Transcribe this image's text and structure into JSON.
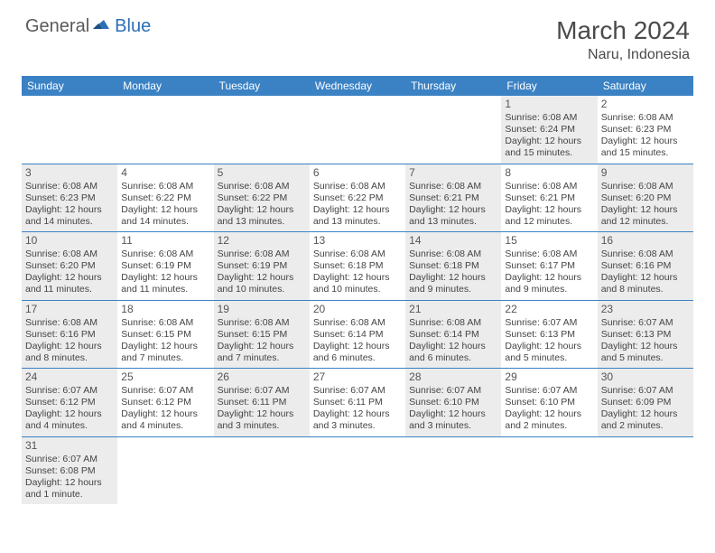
{
  "logo": {
    "general": "General",
    "blue": "Blue"
  },
  "title": "March 2024",
  "location": "Naru, Indonesia",
  "colors": {
    "header_bar": "#3b82c4",
    "shaded_cell": "#ececec",
    "row_border": "#3b82c4",
    "text": "#444444",
    "title_text": "#4a4a4a"
  },
  "days_of_week": [
    "Sunday",
    "Monday",
    "Tuesday",
    "Wednesday",
    "Thursday",
    "Friday",
    "Saturday"
  ],
  "weeks": [
    [
      {
        "blank": true
      },
      {
        "blank": true
      },
      {
        "blank": true
      },
      {
        "blank": true
      },
      {
        "blank": true
      },
      {
        "num": "1",
        "shaded": true,
        "sunrise": "Sunrise: 6:08 AM",
        "sunset": "Sunset: 6:24 PM",
        "daylight1": "Daylight: 12 hours",
        "daylight2": "and 15 minutes."
      },
      {
        "num": "2",
        "shaded": false,
        "sunrise": "Sunrise: 6:08 AM",
        "sunset": "Sunset: 6:23 PM",
        "daylight1": "Daylight: 12 hours",
        "daylight2": "and 15 minutes."
      }
    ],
    [
      {
        "num": "3",
        "shaded": true,
        "sunrise": "Sunrise: 6:08 AM",
        "sunset": "Sunset: 6:23 PM",
        "daylight1": "Daylight: 12 hours",
        "daylight2": "and 14 minutes."
      },
      {
        "num": "4",
        "shaded": false,
        "sunrise": "Sunrise: 6:08 AM",
        "sunset": "Sunset: 6:22 PM",
        "daylight1": "Daylight: 12 hours",
        "daylight2": "and 14 minutes."
      },
      {
        "num": "5",
        "shaded": true,
        "sunrise": "Sunrise: 6:08 AM",
        "sunset": "Sunset: 6:22 PM",
        "daylight1": "Daylight: 12 hours",
        "daylight2": "and 13 minutes."
      },
      {
        "num": "6",
        "shaded": false,
        "sunrise": "Sunrise: 6:08 AM",
        "sunset": "Sunset: 6:22 PM",
        "daylight1": "Daylight: 12 hours",
        "daylight2": "and 13 minutes."
      },
      {
        "num": "7",
        "shaded": true,
        "sunrise": "Sunrise: 6:08 AM",
        "sunset": "Sunset: 6:21 PM",
        "daylight1": "Daylight: 12 hours",
        "daylight2": "and 13 minutes."
      },
      {
        "num": "8",
        "shaded": false,
        "sunrise": "Sunrise: 6:08 AM",
        "sunset": "Sunset: 6:21 PM",
        "daylight1": "Daylight: 12 hours",
        "daylight2": "and 12 minutes."
      },
      {
        "num": "9",
        "shaded": true,
        "sunrise": "Sunrise: 6:08 AM",
        "sunset": "Sunset: 6:20 PM",
        "daylight1": "Daylight: 12 hours",
        "daylight2": "and 12 minutes."
      }
    ],
    [
      {
        "num": "10",
        "shaded": true,
        "sunrise": "Sunrise: 6:08 AM",
        "sunset": "Sunset: 6:20 PM",
        "daylight1": "Daylight: 12 hours",
        "daylight2": "and 11 minutes."
      },
      {
        "num": "11",
        "shaded": false,
        "sunrise": "Sunrise: 6:08 AM",
        "sunset": "Sunset: 6:19 PM",
        "daylight1": "Daylight: 12 hours",
        "daylight2": "and 11 minutes."
      },
      {
        "num": "12",
        "shaded": true,
        "sunrise": "Sunrise: 6:08 AM",
        "sunset": "Sunset: 6:19 PM",
        "daylight1": "Daylight: 12 hours",
        "daylight2": "and 10 minutes."
      },
      {
        "num": "13",
        "shaded": false,
        "sunrise": "Sunrise: 6:08 AM",
        "sunset": "Sunset: 6:18 PM",
        "daylight1": "Daylight: 12 hours",
        "daylight2": "and 10 minutes."
      },
      {
        "num": "14",
        "shaded": true,
        "sunrise": "Sunrise: 6:08 AM",
        "sunset": "Sunset: 6:18 PM",
        "daylight1": "Daylight: 12 hours",
        "daylight2": "and 9 minutes."
      },
      {
        "num": "15",
        "shaded": false,
        "sunrise": "Sunrise: 6:08 AM",
        "sunset": "Sunset: 6:17 PM",
        "daylight1": "Daylight: 12 hours",
        "daylight2": "and 9 minutes."
      },
      {
        "num": "16",
        "shaded": true,
        "sunrise": "Sunrise: 6:08 AM",
        "sunset": "Sunset: 6:16 PM",
        "daylight1": "Daylight: 12 hours",
        "daylight2": "and 8 minutes."
      }
    ],
    [
      {
        "num": "17",
        "shaded": true,
        "sunrise": "Sunrise: 6:08 AM",
        "sunset": "Sunset: 6:16 PM",
        "daylight1": "Daylight: 12 hours",
        "daylight2": "and 8 minutes."
      },
      {
        "num": "18",
        "shaded": false,
        "sunrise": "Sunrise: 6:08 AM",
        "sunset": "Sunset: 6:15 PM",
        "daylight1": "Daylight: 12 hours",
        "daylight2": "and 7 minutes."
      },
      {
        "num": "19",
        "shaded": true,
        "sunrise": "Sunrise: 6:08 AM",
        "sunset": "Sunset: 6:15 PM",
        "daylight1": "Daylight: 12 hours",
        "daylight2": "and 7 minutes."
      },
      {
        "num": "20",
        "shaded": false,
        "sunrise": "Sunrise: 6:08 AM",
        "sunset": "Sunset: 6:14 PM",
        "daylight1": "Daylight: 12 hours",
        "daylight2": "and 6 minutes."
      },
      {
        "num": "21",
        "shaded": true,
        "sunrise": "Sunrise: 6:08 AM",
        "sunset": "Sunset: 6:14 PM",
        "daylight1": "Daylight: 12 hours",
        "daylight2": "and 6 minutes."
      },
      {
        "num": "22",
        "shaded": false,
        "sunrise": "Sunrise: 6:07 AM",
        "sunset": "Sunset: 6:13 PM",
        "daylight1": "Daylight: 12 hours",
        "daylight2": "and 5 minutes."
      },
      {
        "num": "23",
        "shaded": true,
        "sunrise": "Sunrise: 6:07 AM",
        "sunset": "Sunset: 6:13 PM",
        "daylight1": "Daylight: 12 hours",
        "daylight2": "and 5 minutes."
      }
    ],
    [
      {
        "num": "24",
        "shaded": true,
        "sunrise": "Sunrise: 6:07 AM",
        "sunset": "Sunset: 6:12 PM",
        "daylight1": "Daylight: 12 hours",
        "daylight2": "and 4 minutes."
      },
      {
        "num": "25",
        "shaded": false,
        "sunrise": "Sunrise: 6:07 AM",
        "sunset": "Sunset: 6:12 PM",
        "daylight1": "Daylight: 12 hours",
        "daylight2": "and 4 minutes."
      },
      {
        "num": "26",
        "shaded": true,
        "sunrise": "Sunrise: 6:07 AM",
        "sunset": "Sunset: 6:11 PM",
        "daylight1": "Daylight: 12 hours",
        "daylight2": "and 3 minutes."
      },
      {
        "num": "27",
        "shaded": false,
        "sunrise": "Sunrise: 6:07 AM",
        "sunset": "Sunset: 6:11 PM",
        "daylight1": "Daylight: 12 hours",
        "daylight2": "and 3 minutes."
      },
      {
        "num": "28",
        "shaded": true,
        "sunrise": "Sunrise: 6:07 AM",
        "sunset": "Sunset: 6:10 PM",
        "daylight1": "Daylight: 12 hours",
        "daylight2": "and 3 minutes."
      },
      {
        "num": "29",
        "shaded": false,
        "sunrise": "Sunrise: 6:07 AM",
        "sunset": "Sunset: 6:10 PM",
        "daylight1": "Daylight: 12 hours",
        "daylight2": "and 2 minutes."
      },
      {
        "num": "30",
        "shaded": true,
        "sunrise": "Sunrise: 6:07 AM",
        "sunset": "Sunset: 6:09 PM",
        "daylight1": "Daylight: 12 hours",
        "daylight2": "and 2 minutes."
      }
    ],
    [
      {
        "num": "31",
        "shaded": true,
        "sunrise": "Sunrise: 6:07 AM",
        "sunset": "Sunset: 6:08 PM",
        "daylight1": "Daylight: 12 hours",
        "daylight2": "and 1 minute."
      },
      {
        "blank": true
      },
      {
        "blank": true
      },
      {
        "blank": true
      },
      {
        "blank": true
      },
      {
        "blank": true
      },
      {
        "blank": true
      }
    ]
  ]
}
